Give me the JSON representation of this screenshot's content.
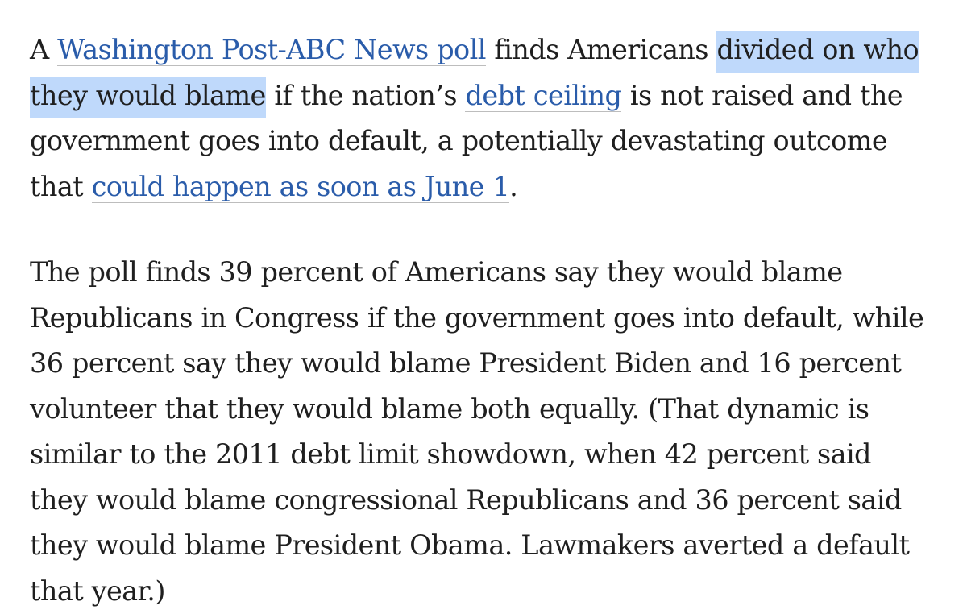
{
  "article": {
    "paragraph1": {
      "part1": "A ",
      "link1": "Washington Post-ABC News poll",
      "part2": " finds Americans ",
      "highlight": "divided on who they would blame",
      "part3": " if the nation’s ",
      "link2": "debt ceiling",
      "part4": " is not raised and the government goes into default, a potentially devastating outcome that ",
      "link3": "could happen as soon as June 1",
      "part5": "."
    },
    "paragraph2": "The poll finds 39 percent of Americans say they would blame Republicans in Congress if the government goes into default, while 36 percent say they would blame President Biden and 16 percent volunteer that they would blame both equally. (That dynamic is similar to the 2011 debt limit showdown, when 42 percent said they would blame congressional Republicans and 36 percent said they would blame President Obama. Lawmakers averted a default that year.)"
  },
  "colors": {
    "link": "#2a5caa",
    "highlight": "#bfd9fb",
    "text": "#1f1f1f"
  }
}
